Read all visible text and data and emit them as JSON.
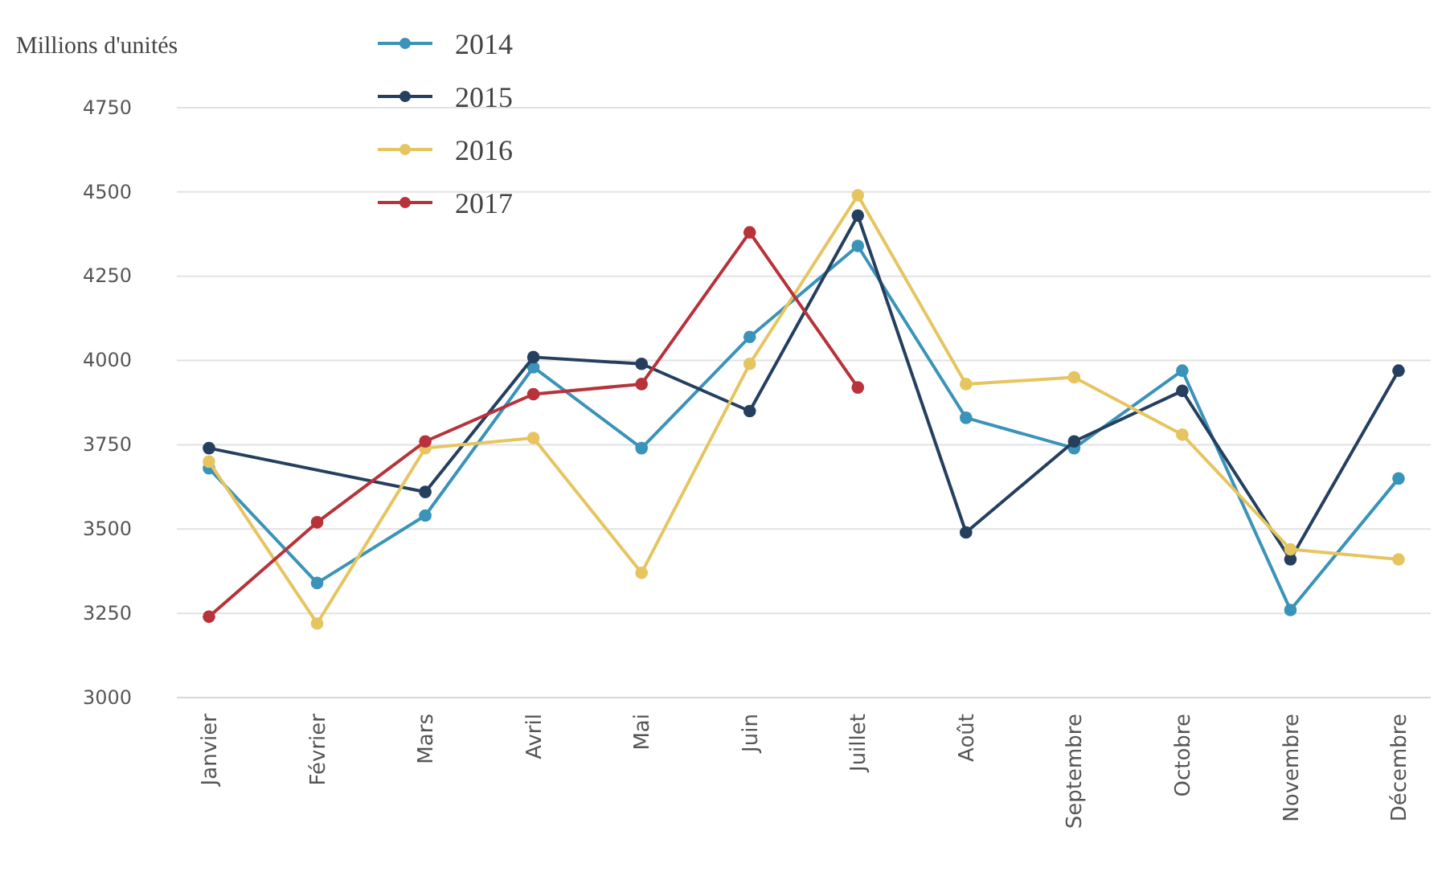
{
  "chart_data": {
    "type": "line",
    "ylabel": "Millions d'unités",
    "categories": [
      "Janvier",
      "Février",
      "Mars",
      "Avril",
      "Mai",
      "Juin",
      "Juillet",
      "Août",
      "Septembre",
      "Octobre",
      "Novembre",
      "Décembre"
    ],
    "series": [
      {
        "name": "2014",
        "color": "#3a93b8",
        "values": [
          3680,
          3340,
          3540,
          3980,
          3740,
          4070,
          4340,
          3830,
          3740,
          3970,
          3260,
          3650
        ]
      },
      {
        "name": "2015",
        "color": "#24405e",
        "values": [
          3740,
          null,
          3610,
          4010,
          3990,
          3850,
          4430,
          3490,
          3760,
          3910,
          3410,
          3970
        ]
      },
      {
        "name": "2016",
        "color": "#e6c560",
        "values": [
          3700,
          3220,
          3740,
          3770,
          3370,
          3990,
          4490,
          3930,
          3950,
          3780,
          3440,
          3410
        ]
      },
      {
        "name": "2017",
        "color": "#b8323a",
        "values": [
          3240,
          3520,
          3760,
          3900,
          3930,
          4380,
          3920,
          null,
          null,
          null,
          null,
          null
        ]
      }
    ],
    "ylim": [
      3000,
      4750
    ],
    "yticks": [
      3000,
      3250,
      3500,
      3750,
      4000,
      4250,
      4500,
      4750
    ],
    "grid": "y",
    "legend": "top left",
    "marker": "circle",
    "line_style": "solid"
  }
}
